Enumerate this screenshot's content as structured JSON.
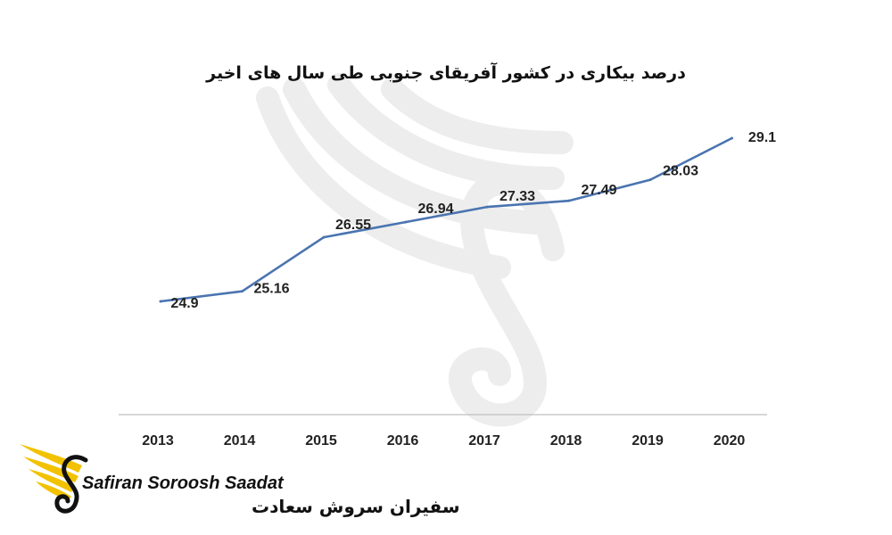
{
  "chart_data": {
    "type": "line",
    "title": "درصد بیکاری در کشور آفریقای جنوبی طی سال های اخیر",
    "categories": [
      "2013",
      "2014",
      "2015",
      "2016",
      "2017",
      "2018",
      "2019",
      "2020"
    ],
    "values": [
      24.9,
      25.16,
      26.55,
      26.94,
      27.33,
      27.49,
      28.03,
      29.1
    ],
    "data_labels": [
      "24.9",
      "25.16",
      "26.55",
      "26.94",
      "27.33",
      "27.49",
      "28.03",
      "29.1"
    ],
    "xlabel": "",
    "ylabel": "",
    "ylim": [
      20,
      30
    ],
    "grid": false,
    "legend": "none",
    "line_color": "#4A74B0",
    "axis_color": "#BFBFBF"
  },
  "logo": {
    "name_en": "Safiran Soroosh Saadat",
    "name_fa": "سفیران سروش سعادت",
    "wing_color": "#F2C200",
    "swan_color": "#111111"
  },
  "watermark": {
    "icon": "swan-wing-watermark-icon",
    "color": "#EDEDED"
  }
}
